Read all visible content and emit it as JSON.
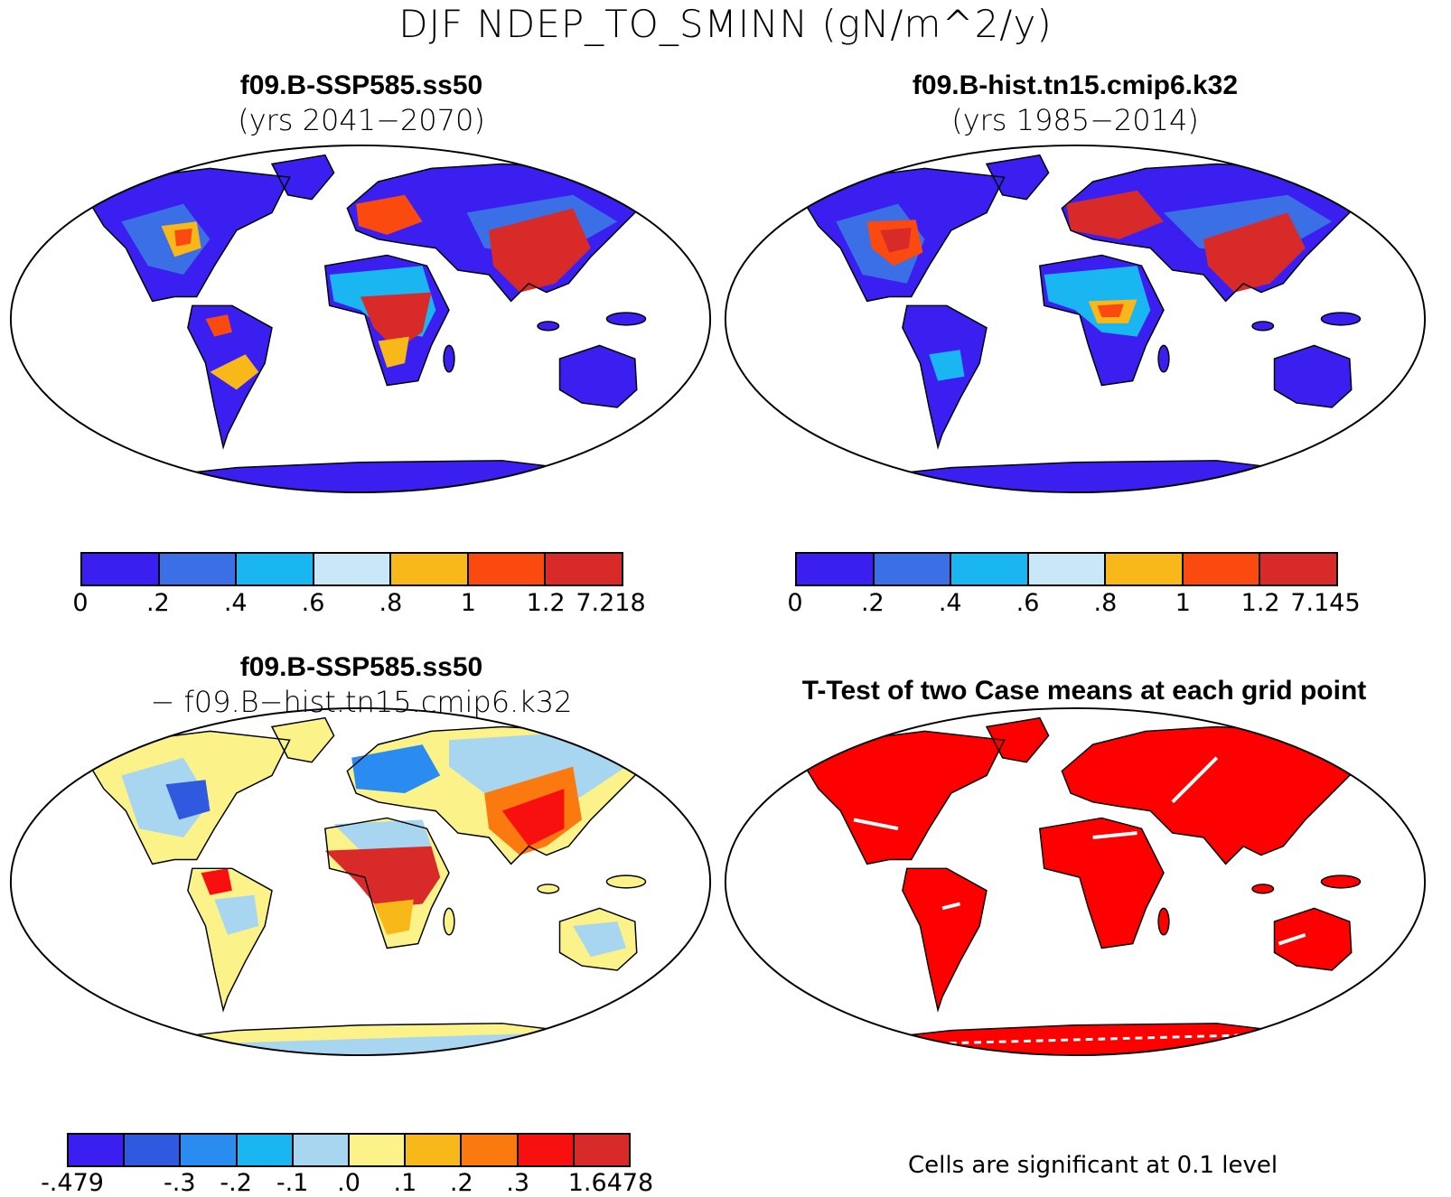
{
  "title": "DJF NDEP_TO_SMINN (gN/m^2/y)",
  "panels": {
    "top_left": {
      "case": "f09.B-SSP585.ss50",
      "years": "(yrs 2041−2070)"
    },
    "top_right": {
      "case": "f09.B-hist.tn15.cmip6.k32",
      "years": "(yrs 1985−2014)"
    },
    "bottom_left": {
      "case": "f09.B-SSP585.ss50",
      "minus": "− f09.B−hist.tn15.cmip6.k32"
    },
    "bottom_right": {
      "title": "T-Test of two Case means at each grid point",
      "note": "Cells are significant at 0.1 level"
    }
  },
  "colorbars": {
    "abs": {
      "colors": [
        "#3a1ff0",
        "#3a6fe6",
        "#1ab6f2",
        "#c8e8f8",
        "#f8b81a",
        "#fa4a10",
        "#d92a2a"
      ],
      "labels_left": [
        "0",
        ".2",
        ".4",
        ".6",
        ".8",
        "1",
        "1.2",
        "7.218"
      ],
      "labels_right": [
        "0",
        ".2",
        ".4",
        ".6",
        ".8",
        "1",
        "1.2",
        "7.145"
      ]
    },
    "diff": {
      "colors": [
        "#3a1ff0",
        "#2f5ae0",
        "#2a8cf0",
        "#1ab6f2",
        "#a8d6f0",
        "#fbf28a",
        "#f8b81a",
        "#fa7a10",
        "#f80f10",
        "#d92a2a"
      ],
      "labels": [
        {
          "text": "-.479",
          "value": -0.479
        },
        {
          "text": "-.3",
          "value": -0.3
        },
        {
          "text": "-.2",
          "value": -0.2
        },
        {
          "text": "-.1",
          "value": -0.1
        },
        {
          "text": ".0",
          "value": 0.0
        },
        {
          "text": ".1",
          "value": 0.1
        },
        {
          "text": ".2",
          "value": 0.2
        },
        {
          "text": ".3",
          "value": 0.3
        },
        {
          "text": "1.6478",
          "value": 1.6478
        }
      ]
    },
    "ttest_color": "#ff0000"
  }
}
